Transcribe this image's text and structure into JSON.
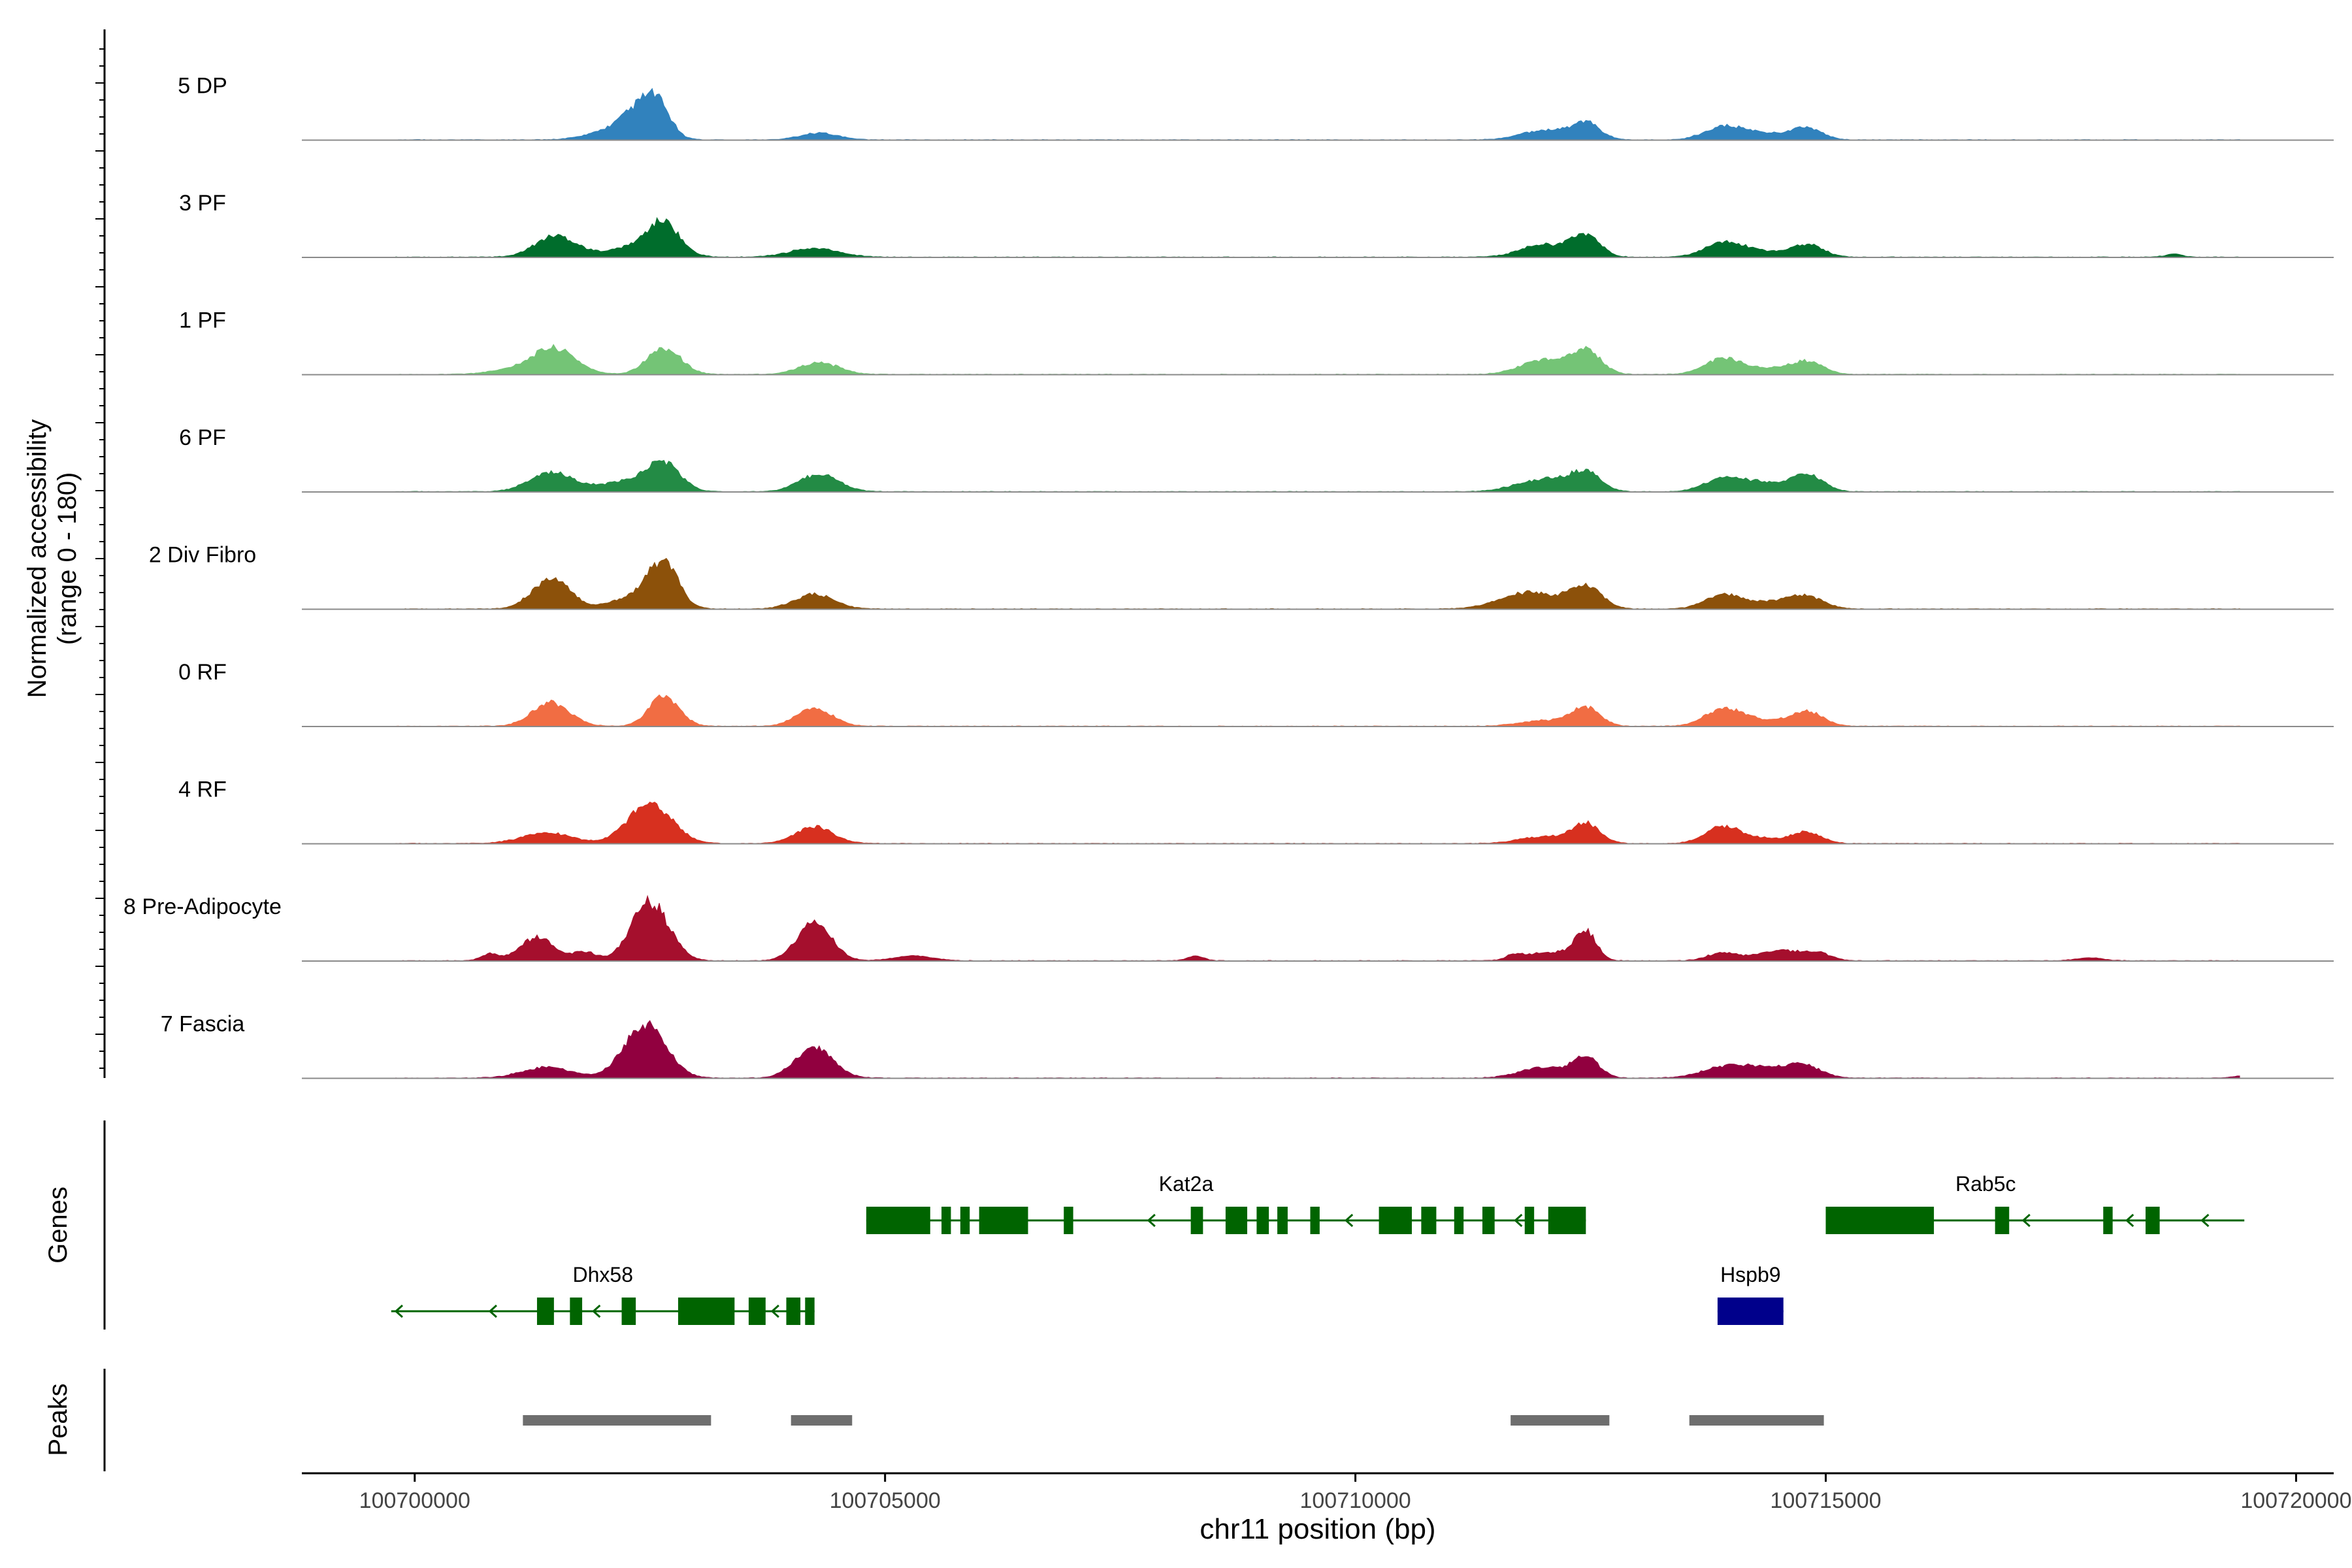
{
  "chart_data": {
    "type": "area",
    "title": "",
    "ylabel": "Normalized accessibility",
    "ylabel_range": "(range 0 - 180)",
    "xlabel": "chr11 position (bp)",
    "xlim": [
      100698800,
      100720400
    ],
    "ylim": [
      0,
      180
    ],
    "x_ticks": [
      100700000,
      100705000,
      100710000,
      100715000,
      100720000
    ],
    "x_tick_labels": [
      "100700000",
      "100705000",
      "100710000",
      "100715000",
      "100720000"
    ],
    "tracks": [
      {
        "name": "5 DP",
        "color": "#3182BD",
        "peaks": [
          [
            100702100,
            18,
            260
          ],
          [
            100702380,
            48,
            180
          ],
          [
            100702580,
            60,
            140
          ],
          [
            100704300,
            14,
            200
          ],
          [
            100712000,
            20,
            240
          ],
          [
            100712450,
            34,
            150
          ],
          [
            100713900,
            24,
            200
          ],
          [
            100714300,
            14,
            250
          ],
          [
            100714800,
            24,
            160
          ]
        ]
      },
      {
        "name": "3 PF",
        "color": "#006D2C",
        "peaks": [
          [
            100701500,
            44,
            220
          ],
          [
            100702400,
            24,
            300
          ],
          [
            100702650,
            58,
            160
          ],
          [
            100704250,
            18,
            260
          ],
          [
            100712000,
            26,
            240
          ],
          [
            100712450,
            44,
            150
          ],
          [
            100713900,
            26,
            200
          ],
          [
            100714250,
            12,
            250
          ],
          [
            100714800,
            26,
            170
          ],
          [
            100718700,
            6,
            90
          ]
        ]
      },
      {
        "name": "1 PF",
        "color": "#74C476",
        "peaks": [
          [
            100701500,
            46,
            220
          ],
          [
            100701200,
            14,
            300
          ],
          [
            100702650,
            54,
            180
          ],
          [
            100704300,
            24,
            210
          ],
          [
            100712000,
            30,
            240
          ],
          [
            100712450,
            48,
            160
          ],
          [
            100713900,
            32,
            190
          ],
          [
            100714350,
            12,
            220
          ],
          [
            100714800,
            26,
            170
          ]
        ]
      },
      {
        "name": "6 PF",
        "color": "#238B45",
        "peaks": [
          [
            100701450,
            40,
            230
          ],
          [
            100702300,
            22,
            300
          ],
          [
            100702650,
            52,
            170
          ],
          [
            100704300,
            36,
            210
          ],
          [
            100712000,
            26,
            280
          ],
          [
            100712450,
            36,
            160
          ],
          [
            100713900,
            24,
            200
          ],
          [
            100714300,
            18,
            240
          ],
          [
            100714800,
            34,
            170
          ]
        ]
      },
      {
        "name": "2 Div Fibro",
        "color": "#8C510A",
        "peaks": [
          [
            100701450,
            62,
            200
          ],
          [
            100702400,
            30,
            260
          ],
          [
            100702650,
            82,
            150
          ],
          [
            100704250,
            30,
            210
          ],
          [
            100711850,
            34,
            300
          ],
          [
            100712450,
            44,
            170
          ],
          [
            100713900,
            28,
            190
          ],
          [
            100714400,
            14,
            250
          ],
          [
            100714800,
            24,
            180
          ]
        ]
      },
      {
        "name": "0 RF",
        "color": "#F16D43",
        "peaks": [
          [
            100701450,
            48,
            200
          ],
          [
            100702650,
            62,
            160
          ],
          [
            100704250,
            36,
            190
          ],
          [
            100712000,
            12,
            250
          ],
          [
            100712450,
            38,
            150
          ],
          [
            100713900,
            34,
            190
          ],
          [
            100714300,
            12,
            240
          ],
          [
            100714800,
            30,
            170
          ]
        ]
      },
      {
        "name": "4 RF",
        "color": "#D7301F",
        "peaks": [
          [
            100701400,
            22,
            260
          ],
          [
            100702500,
            84,
            230
          ],
          [
            100704250,
            34,
            200
          ],
          [
            100712000,
            14,
            250
          ],
          [
            100712450,
            40,
            150
          ],
          [
            100713900,
            32,
            190
          ],
          [
            100714300,
            10,
            250
          ],
          [
            100714800,
            22,
            160
          ]
        ]
      },
      {
        "name": "8 Pre-Adipocyte",
        "color": "#A50F2D",
        "peaks": [
          [
            100700800,
            14,
            90
          ],
          [
            100701300,
            48,
            180
          ],
          [
            100701800,
            18,
            120
          ],
          [
            100702500,
            120,
            200
          ],
          [
            100704250,
            78,
            180
          ],
          [
            100705300,
            10,
            200
          ],
          [
            100708300,
            10,
            90
          ],
          [
            100711700,
            10,
            90
          ],
          [
            100712100,
            18,
            260
          ],
          [
            100712450,
            56,
            110
          ],
          [
            100713900,
            16,
            160
          ],
          [
            100714550,
            22,
            260
          ],
          [
            100714950,
            10,
            120
          ],
          [
            100717800,
            6,
            150
          ]
        ]
      },
      {
        "name": "7 Fascia",
        "color": "#91003F",
        "peaks": [
          [
            100701400,
            22,
            260
          ],
          [
            100702450,
            110,
            220
          ],
          [
            100704250,
            62,
            200
          ],
          [
            100712000,
            22,
            250
          ],
          [
            100712450,
            40,
            140
          ],
          [
            100713900,
            20,
            240
          ],
          [
            100714300,
            18,
            240
          ],
          [
            100714750,
            26,
            190
          ],
          [
            100719400,
            4,
            80
          ]
        ]
      }
    ],
    "genes": [
      {
        "name": "Kat2a",
        "strand": "-",
        "color": "#006400",
        "start": 100704800,
        "end": 100712450,
        "row": 0,
        "exons": [
          [
            100704800,
            100705480
          ],
          [
            100705600,
            100705700
          ],
          [
            100705800,
            100705900
          ],
          [
            100706000,
            100706520
          ],
          [
            100706900,
            100707000
          ],
          [
            100708250,
            100708380
          ],
          [
            100708620,
            100708850
          ],
          [
            100708950,
            100709080
          ],
          [
            100709170,
            100709280
          ],
          [
            100709520,
            100709620
          ],
          [
            100710250,
            100710600
          ],
          [
            100710700,
            100710860
          ],
          [
            100711050,
            100711150
          ],
          [
            100711350,
            100711480
          ],
          [
            100711800,
            100711900
          ],
          [
            100712050,
            100712450
          ]
        ],
        "arrows": [
          100707800,
          100709000,
          100709900,
          100711700
        ]
      },
      {
        "name": "Rab5c",
        "strand": "-",
        "color": "#006400",
        "start": 100715000,
        "end": 100719450,
        "row": 0,
        "exons": [
          [
            100715000,
            100716150
          ],
          [
            100716800,
            100716950
          ],
          [
            100717950,
            100718050
          ],
          [
            100718400,
            100718550
          ]
        ],
        "arrows": [
          100717100,
          100718200,
          100719000
        ]
      },
      {
        "name": "Dhx58",
        "strand": "-",
        "color": "#006400",
        "start": 100699750,
        "end": 100704250,
        "row": 1,
        "exons": [
          [
            100701300,
            100701480
          ],
          [
            100701650,
            100701780
          ],
          [
            100702200,
            100702350
          ],
          [
            100702800,
            100703400
          ],
          [
            100703550,
            100703730
          ],
          [
            100703950,
            100704100
          ],
          [
            100704150,
            100704250
          ]
        ],
        "arrows": [
          100699800,
          100700800,
          100701900,
          100703800
        ]
      },
      {
        "name": "Hspb9",
        "strand": "+",
        "color": "#00008B",
        "start": 100713850,
        "end": 100714550,
        "row": 1,
        "exons": [
          [
            100713850,
            100714550
          ]
        ],
        "arrows": []
      }
    ],
    "peak_regions": [
      [
        100701150,
        100703150
      ],
      [
        100704000,
        100704650
      ],
      [
        100711650,
        100712700
      ],
      [
        100713550,
        100714980
      ]
    ],
    "panel_labels": [
      "Genes",
      "Peaks"
    ]
  }
}
